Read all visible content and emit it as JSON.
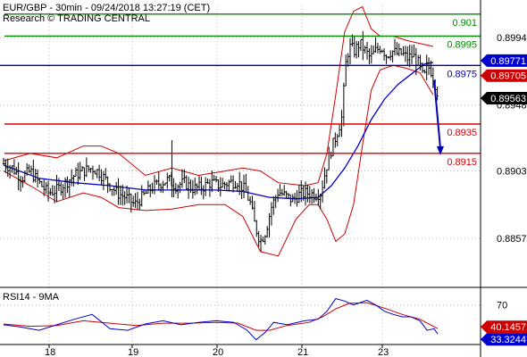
{
  "header": {
    "line1": "EUR/GBP - 30min - 09/24/2018 13:27:19 (CET)",
    "line2": "Research © TRADING CENTRAL"
  },
  "colors": {
    "grid": "#b8b8b8",
    "candles": "#000000",
    "bands": "#cc0000",
    "ma": "#0000cc",
    "target": "#008800",
    "support": "#dd0000",
    "pivot": "#0000aa",
    "rsi": "#0000cc",
    "rsi_ma": "#cc0000",
    "price_box": "#000000",
    "bb_box": "#cc0000",
    "rsi_box": "#0000cc"
  },
  "chart_data": [
    {
      "type": "candlestick",
      "title": "EUR/GBP - 30min - 09/24/2018 13:27:19 (CET)",
      "x_tick_labels": [
        "18",
        "19",
        "20",
        "21",
        "23"
      ],
      "y_tick_labels": [
        0.8994,
        0.8948,
        0.8903,
        0.8857
      ],
      "ylim": [
        0.8826,
        0.9016
      ],
      "grid": true,
      "levels": [
        {
          "label": "0.901",
          "value": 0.901,
          "role": "target"
        },
        {
          "label": "0.8995",
          "value": 0.8995,
          "role": "target"
        },
        {
          "label": "0.8975",
          "value": 0.8975,
          "role": "pivot"
        },
        {
          "label": "0.8935",
          "value": 0.8935,
          "role": "support"
        },
        {
          "label": "0.8915",
          "value": 0.8915,
          "role": "support"
        }
      ],
      "price_tags": [
        {
          "label": "0.89771",
          "value": 0.89771,
          "role": "ma"
        },
        {
          "label": "0.89705",
          "value": 0.89705,
          "role": "bands"
        },
        {
          "label": "0.89563",
          "value": 0.89563,
          "role": "price"
        }
      ],
      "close": [
        [
          0,
          0.8908
        ],
        [
          10,
          0.8905
        ],
        [
          20,
          0.8898
        ],
        [
          30,
          0.8903
        ],
        [
          40,
          0.8895
        ],
        [
          50,
          0.8888
        ],
        [
          60,
          0.889
        ],
        [
          70,
          0.8895
        ],
        [
          80,
          0.89
        ],
        [
          90,
          0.8903
        ],
        [
          100,
          0.8905
        ],
        [
          108,
          0.8902
        ],
        [
          118,
          0.8895
        ],
        [
          128,
          0.8888
        ],
        [
          138,
          0.8885
        ],
        [
          148,
          0.888
        ],
        [
          158,
          0.8886
        ],
        [
          168,
          0.8892
        ],
        [
          178,
          0.8895
        ],
        [
          186,
          0.8897
        ],
        [
          194,
          0.8893
        ],
        [
          204,
          0.8895
        ],
        [
          214,
          0.8891
        ],
        [
          224,
          0.8892
        ],
        [
          234,
          0.8895
        ],
        [
          244,
          0.8893
        ],
        [
          254,
          0.8895
        ],
        [
          264,
          0.8896
        ],
        [
          272,
          0.889
        ],
        [
          278,
          0.8882
        ],
        [
          284,
          0.8865
        ],
        [
          290,
          0.8855
        ],
        [
          296,
          0.8862
        ],
        [
          302,
          0.8878
        ],
        [
          310,
          0.8889
        ],
        [
          318,
          0.8886
        ],
        [
          326,
          0.8883
        ],
        [
          334,
          0.8887
        ],
        [
          342,
          0.8888
        ],
        [
          352,
          0.8887
        ],
        [
          358,
          0.8888
        ],
        [
          364,
          0.8905
        ],
        [
          370,
          0.8918
        ],
        [
          376,
          0.8928
        ],
        [
          382,
          0.894
        ],
        [
          386,
          0.8975
        ],
        [
          390,
          0.8988
        ],
        [
          396,
          0.8985
        ],
        [
          402,
          0.899
        ],
        [
          408,
          0.8985
        ],
        [
          414,
          0.898
        ],
        [
          420,
          0.8985
        ],
        [
          426,
          0.8988
        ],
        [
          432,
          0.8982
        ],
        [
          438,
          0.8985
        ],
        [
          444,
          0.8983
        ],
        [
          450,
          0.8983
        ],
        [
          456,
          0.898
        ],
        [
          462,
          0.8982
        ],
        [
          466,
          0.8978
        ],
        [
          470,
          0.8975
        ],
        [
          474,
          0.8965
        ],
        [
          478,
          0.8975
        ],
        [
          482,
          0.8972
        ],
        [
          486,
          0.8965
        ],
        [
          490,
          0.89563
        ]
      ],
      "bollinger_upper": [
        [
          0,
          0.891
        ],
        [
          30,
          0.8915
        ],
        [
          60,
          0.8912
        ],
        [
          90,
          0.892
        ],
        [
          110,
          0.892
        ],
        [
          130,
          0.8915
        ],
        [
          160,
          0.89
        ],
        [
          190,
          0.8905
        ],
        [
          220,
          0.89
        ],
        [
          250,
          0.8903
        ],
        [
          270,
          0.8905
        ],
        [
          290,
          0.8903
        ],
        [
          310,
          0.8895
        ],
        [
          340,
          0.8893
        ],
        [
          355,
          0.8895
        ],
        [
          365,
          0.8915
        ],
        [
          375,
          0.8955
        ],
        [
          385,
          0.8998
        ],
        [
          395,
          0.9012
        ],
        [
          405,
          0.9015
        ],
        [
          415,
          0.9
        ],
        [
          425,
          0.8995
        ],
        [
          440,
          0.8995
        ],
        [
          455,
          0.8992
        ],
        [
          470,
          0.899
        ],
        [
          485,
          0.8988
        ]
      ],
      "bollinger_lower": [
        [
          0,
          0.8903
        ],
        [
          30,
          0.8893
        ],
        [
          60,
          0.8882
        ],
        [
          90,
          0.8888
        ],
        [
          110,
          0.8885
        ],
        [
          130,
          0.8878
        ],
        [
          160,
          0.8876
        ],
        [
          190,
          0.8877
        ],
        [
          220,
          0.888
        ],
        [
          250,
          0.888
        ],
        [
          270,
          0.8872
        ],
        [
          290,
          0.8848
        ],
        [
          310,
          0.8845
        ],
        [
          330,
          0.887
        ],
        [
          345,
          0.888
        ],
        [
          355,
          0.888
        ],
        [
          365,
          0.887
        ],
        [
          375,
          0.8855
        ],
        [
          385,
          0.886
        ],
        [
          395,
          0.888
        ],
        [
          405,
          0.892
        ],
        [
          415,
          0.8958
        ],
        [
          425,
          0.8972
        ],
        [
          440,
          0.8975
        ],
        [
          455,
          0.8973
        ],
        [
          470,
          0.897
        ],
        [
          485,
          0.8955
        ]
      ],
      "moving_average": [
        [
          0,
          0.8907
        ],
        [
          40,
          0.8898
        ],
        [
          80,
          0.8895
        ],
        [
          120,
          0.8893
        ],
        [
          160,
          0.889
        ],
        [
          200,
          0.889
        ],
        [
          240,
          0.889
        ],
        [
          270,
          0.8889
        ],
        [
          300,
          0.8885
        ],
        [
          330,
          0.8884
        ],
        [
          355,
          0.8885
        ],
        [
          370,
          0.8893
        ],
        [
          385,
          0.8905
        ],
        [
          400,
          0.892
        ],
        [
          415,
          0.8938
        ],
        [
          430,
          0.8952
        ],
        [
          445,
          0.8962
        ],
        [
          460,
          0.8969
        ],
        [
          475,
          0.8976
        ],
        [
          485,
          0.8977
        ]
      ],
      "forecast_arrow": [
        [
          486,
          0.8965
        ],
        [
          493,
          0.8915
        ]
      ]
    },
    {
      "type": "line",
      "title": "RSI14 - 9MA",
      "y_tick_labels": [
        70
      ],
      "ylim": [
        20,
        90
      ],
      "grid": true,
      "series": [
        {
          "name": "RSI14",
          "role": "rsi",
          "tag": "33.3244",
          "values": [
            [
              0,
              45
            ],
            [
              20,
              42
            ],
            [
              40,
              38
            ],
            [
              60,
              45
            ],
            [
              80,
              52
            ],
            [
              100,
              58
            ],
            [
              120,
              40
            ],
            [
              140,
              38
            ],
            [
              160,
              46
            ],
            [
              180,
              50
            ],
            [
              200,
              45
            ],
            [
              220,
              48
            ],
            [
              240,
              50
            ],
            [
              260,
              48
            ],
            [
              275,
              38
            ],
            [
              285,
              26
            ],
            [
              295,
              35
            ],
            [
              305,
              48
            ],
            [
              320,
              45
            ],
            [
              340,
              50
            ],
            [
              355,
              52
            ],
            [
              365,
              62
            ],
            [
              375,
              78
            ],
            [
              385,
              75
            ],
            [
              395,
              70
            ],
            [
              410,
              76
            ],
            [
              420,
              70
            ],
            [
              430,
              62
            ],
            [
              440,
              58
            ],
            [
              450,
              55
            ],
            [
              460,
              55
            ],
            [
              470,
              50
            ],
            [
              478,
              38
            ],
            [
              486,
              40
            ],
            [
              490,
              33.3
            ]
          ]
        },
        {
          "name": "9MA",
          "role": "rsi_ma",
          "tag": "40.1457",
          "values": [
            [
              0,
              46
            ],
            [
              30,
              43
            ],
            [
              60,
              44
            ],
            [
              90,
              50
            ],
            [
              120,
              47
            ],
            [
              150,
              44
            ],
            [
              180,
              47
            ],
            [
              210,
              47
            ],
            [
              240,
              48
            ],
            [
              265,
              47
            ],
            [
              285,
              38
            ],
            [
              300,
              38
            ],
            [
              320,
              44
            ],
            [
              345,
              48
            ],
            [
              360,
              55
            ],
            [
              375,
              65
            ],
            [
              390,
              72
            ],
            [
              410,
              73
            ],
            [
              430,
              66
            ],
            [
              450,
              58
            ],
            [
              470,
              52
            ],
            [
              490,
              40.1
            ]
          ]
        }
      ]
    }
  ]
}
